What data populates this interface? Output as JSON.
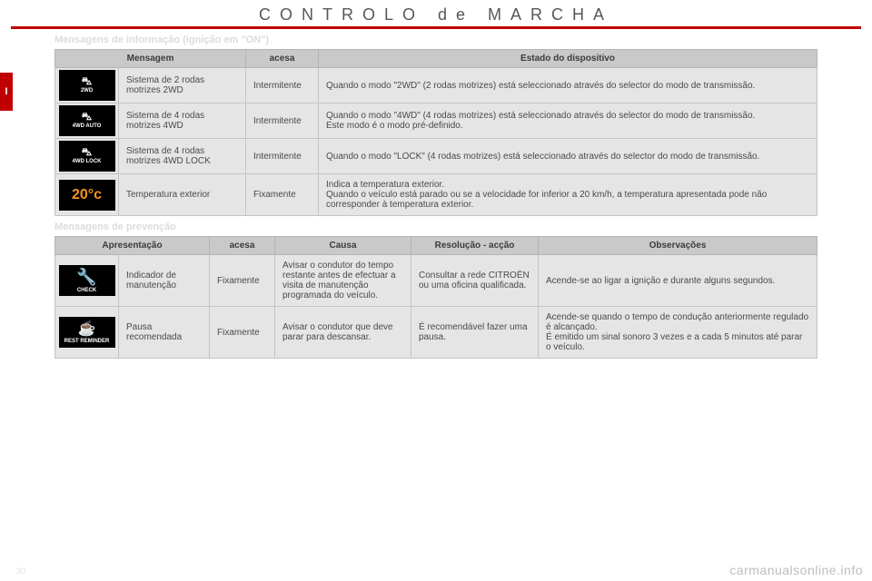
{
  "header": {
    "title": "CONTROLO de MARCHA"
  },
  "sideTab": "I",
  "section1": {
    "title": "Mensagens de informação (ignição em \"ON\")",
    "headers": {
      "c1": "Mensagem",
      "c2": "acesa",
      "c3": "Estado do dispositivo"
    },
    "rows": [
      {
        "icon": {
          "glyph": "⛍",
          "label": "2WD",
          "style": "white"
        },
        "msg": "Sistema de 2 rodas motrizes 2WD",
        "acesa": "Intermitente",
        "estado": "Quando o modo \"2WD\" (2 rodas motrizes) está seleccionado através do selector do modo de transmissão."
      },
      {
        "icon": {
          "glyph": "⛍",
          "label": "4WD AUTO",
          "style": "white"
        },
        "msg": "Sistema de 4 rodas motrizes 4WD",
        "acesa": "Intermitente",
        "estado": "Quando o modo \"4WD\" (4 rodas motrizes) está seleccionado através do selector do modo de transmissão.\nEste modo é o modo pré-definido."
      },
      {
        "icon": {
          "glyph": "⛍",
          "label": "4WD LOCK",
          "style": "white"
        },
        "msg": "Sistema de 4 rodas motrizes 4WD LOCK",
        "acesa": "Intermitente",
        "estado": "Quando o modo \"LOCK\" (4 rodas motrizes) está seleccionado através do selector do modo de transmissão."
      },
      {
        "icon": {
          "temp": "20°c",
          "style": "orange"
        },
        "msg": "Temperatura exterior",
        "acesa": "Fixamente",
        "estado": "Indica a temperatura exterior.\nQuando o veículo está parado ou se a velocidade for inferior a 20 km/h, a temperatura apresentada pode não corresponder à temperatura exterior."
      }
    ]
  },
  "section2": {
    "title": "Mensagens de prevenção",
    "headers": {
      "c1": "Apresentação",
      "c2": "acesa",
      "c3": "Causa",
      "c4": "Resolução - acção",
      "c5": "Observações"
    },
    "rows": [
      {
        "icon": {
          "type": "wrench",
          "label": "CHECK"
        },
        "apres": "Indicador de manutenção",
        "acesa": "Fixamente",
        "causa": "Avisar o condutor do tempo restante antes de efectuar a visita de manutenção programada do veículo.",
        "res": "Consultar a rede CITROËN ou uma oficina qualificada.",
        "obs": "Acende-se ao ligar a ignição e durante alguns segundos."
      },
      {
        "icon": {
          "type": "cup",
          "label": "REST REMINDER"
        },
        "apres": "Pausa recomendada",
        "acesa": "Fixamente",
        "causa": "Avisar o condutor que deve parar para descansar.",
        "res": "É recomendável fazer uma pausa.",
        "obs": "Acende-se quando o tempo de condução anteriormente regulado é alcançado.\nÉ emitido um sinal sonoro 3 vezes e a cada 5 minutos até parar o veículo."
      }
    ]
  },
  "pageNumber": "30",
  "watermark": "carmanualsonline.info",
  "colors": {
    "accent": "#c00000",
    "thBg": "#c9c9c9",
    "tdBg": "#e5e5e5",
    "orange": "#f7931e",
    "text": "#4a4a4a"
  }
}
